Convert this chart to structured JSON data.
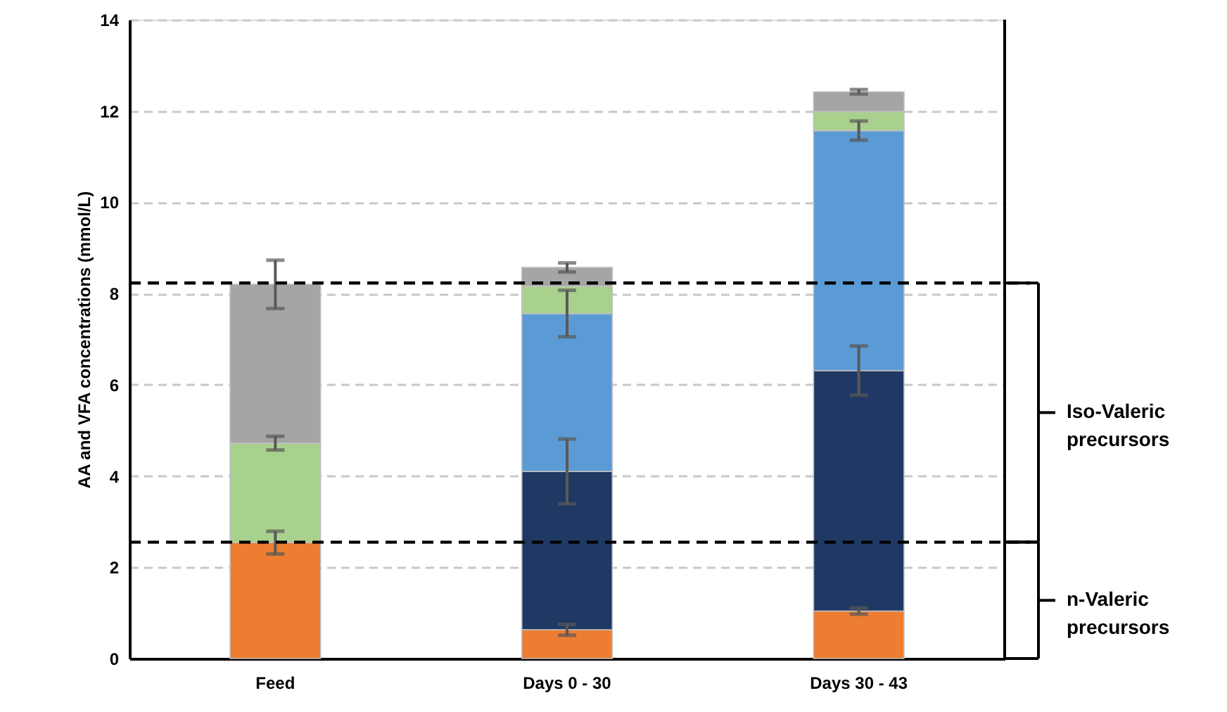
{
  "chart_data": {
    "type": "bar",
    "stacked": true,
    "ylabel": "AA and VFA concentrations (mmol/L)",
    "categories": [
      "Feed",
      "Days 0 - 30",
      "Days 30 - 43"
    ],
    "series": [
      {
        "color": "#ed7d31",
        "values": [
          2.54,
          0.63,
          1.04
        ],
        "errors": [
          0.25,
          0.12,
          0.07
        ]
      },
      {
        "color": "#203864",
        "values": [
          null,
          3.47,
          5.27
        ],
        "errors": [
          null,
          0.71,
          0.54
        ]
      },
      {
        "color": "#5b9bd5",
        "values": [
          null,
          3.46,
          5.26
        ],
        "errors": [
          null,
          0.51,
          0.21
        ]
      },
      {
        "color": "#a9d18e",
        "values": [
          2.18,
          0.6,
          0.42
        ],
        "errors": [
          0.15,
          null,
          null
        ]
      },
      {
        "color": "#a5a5a5",
        "values": [
          3.48,
          0.41,
          0.43
        ],
        "errors": [
          0.53,
          0.1,
          0.05
        ]
      }
    ],
    "ylim": [
      0,
      14
    ],
    "yticks": [
      0,
      2,
      4,
      6,
      8,
      10,
      12,
      14
    ],
    "grid": "y",
    "ref_lines": [
      {
        "axis": "y",
        "value": 8.23,
        "color": "#000000",
        "line_style": "dashed"
      },
      {
        "axis": "y",
        "value": 2.55,
        "color": "#000000",
        "line_style": "dashed"
      }
    ],
    "annotations": [
      "Iso-Valeric precursors",
      "n-Valeric precursors"
    ]
  }
}
